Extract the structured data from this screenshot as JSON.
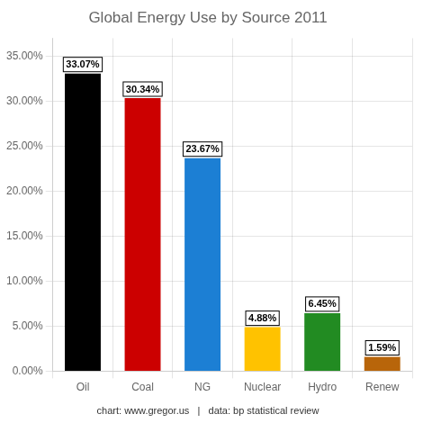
{
  "chart_data": {
    "type": "bar",
    "title": "Global Energy Use by Source 2011",
    "categories": [
      "Oil",
      "Coal",
      "NG",
      "Nuclear",
      "Hydro",
      "Renew"
    ],
    "values": [
      33.07,
      30.34,
      23.67,
      4.88,
      6.45,
      1.59
    ],
    "value_labels": [
      "33.07%",
      "30.34%",
      "23.67%",
      "4.88%",
      "6.45%",
      "1.59%"
    ],
    "data_labels": true,
    "colors": [
      "#000000",
      "#cc0000",
      "#1c7fd4",
      "#ffc200",
      "#228b22",
      "#b8650a"
    ],
    "ylim": [
      0,
      37
    ],
    "yticks": [
      {
        "value": 0,
        "label": "0.00%"
      },
      {
        "value": 5,
        "label": "5.00%"
      },
      {
        "value": 10,
        "label": "10.00%"
      },
      {
        "value": 15,
        "label": "15.00%"
      },
      {
        "value": 20,
        "label": "20.00%"
      },
      {
        "value": 25,
        "label": "25.00%"
      },
      {
        "value": 30,
        "label": "30.00%"
      },
      {
        "value": 35,
        "label": "35.00%"
      }
    ],
    "grid": true,
    "annotations": [
      "chart: www.gregor.us   |   data: bp statistical review"
    ]
  }
}
